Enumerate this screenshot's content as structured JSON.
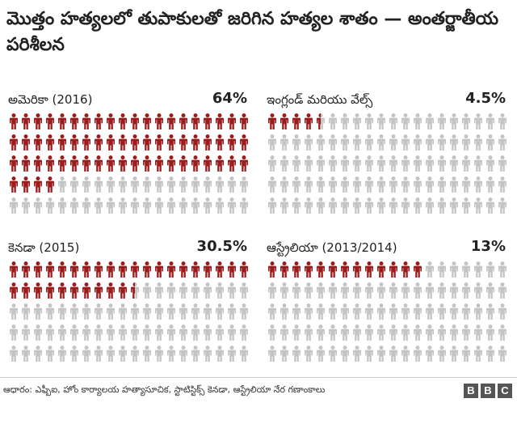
{
  "title": "మొత్తం హత్యలలో తుపాకులతో జరిగిన హత్యల శాతం — అంతర్జాతీయ పరిశీలన",
  "source": "ఆధారం: ఎఫ్బీఐ, హోం కార్యాలయ హత్యాసూచిక, స్టాటిస్టిక్స్ కెనడా, ఆస్ట్రేలియా నేర గణాంకాలు",
  "logo": [
    "B",
    "B",
    "C"
  ],
  "colors": {
    "highlight": "#9b1c1c",
    "base": "#c4c4c4"
  },
  "chart_data": [
    {
      "type": "pictogram",
      "label": "అమెరికా (2016)",
      "value_label": "64%",
      "value": 64,
      "total_icons": 100,
      "rows": 5,
      "cols": 20
    },
    {
      "type": "pictogram",
      "label": "ఇంగ్లండ్ మరియు వేల్స్",
      "value_label": "4.5%",
      "value": 4.5,
      "total_icons": 100,
      "rows": 5,
      "cols": 20
    },
    {
      "type": "pictogram",
      "label": "కెనడా (2015)",
      "value_label": "30.5%",
      "value": 30.5,
      "total_icons": 100,
      "rows": 5,
      "cols": 20
    },
    {
      "type": "pictogram",
      "label": "ఆస్ట్రేలియా (2013/2014)",
      "value_label": "13%",
      "value": 13,
      "total_icons": 100,
      "rows": 5,
      "cols": 20
    }
  ]
}
